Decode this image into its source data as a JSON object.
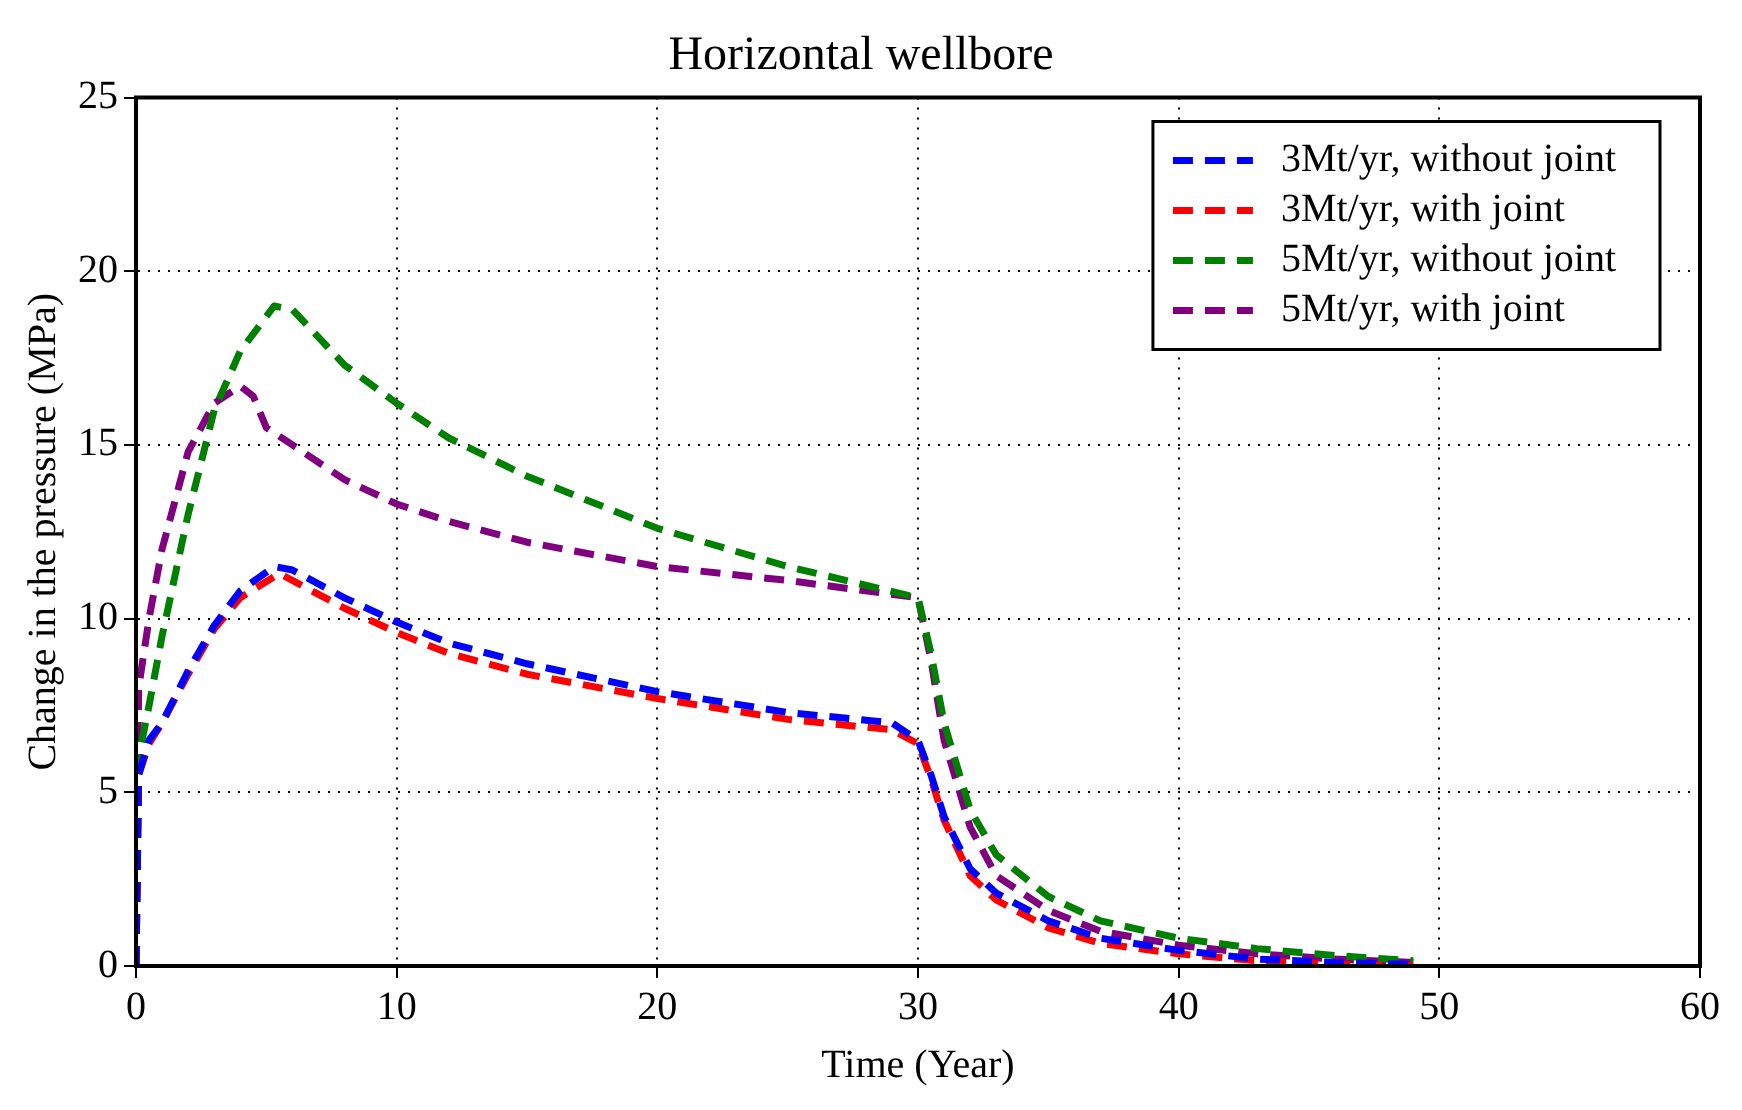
{
  "chart_data": {
    "type": "line",
    "title": "Horizontal wellbore",
    "xlabel": "Time (Year)",
    "ylabel": "Change in the pressure (MPa)",
    "xlim": [
      0,
      60
    ],
    "xticks": [
      0,
      10,
      20,
      30,
      40,
      50,
      60
    ],
    "ylim": [
      0,
      25
    ],
    "yticks": [
      0,
      5,
      10,
      15,
      20,
      25
    ],
    "grid": true,
    "legend": "top right",
    "line_style": "dashed",
    "marker": "none",
    "series": [
      {
        "name": "3Mt/yr, without joint",
        "color": "#0000ff",
        "x": [
          0,
          0.1,
          0.5,
          1,
          2,
          3,
          4,
          5.3,
          6,
          8,
          10,
          12,
          15,
          20,
          25,
          29,
          30,
          30.5,
          31,
          32,
          33,
          35,
          37,
          40,
          43,
          46,
          49
        ],
        "values": [
          0,
          5.5,
          6.5,
          7,
          8.5,
          9.8,
          10.8,
          11.5,
          11.4,
          10.6,
          9.9,
          9.3,
          8.7,
          7.9,
          7.3,
          7.0,
          6.5,
          5.5,
          4.3,
          2.8,
          2.1,
          1.3,
          0.8,
          0.45,
          0.2,
          0.1,
          0.05
        ]
      },
      {
        "name": "3Mt/yr, with joint",
        "color": "#ff0000",
        "x": [
          0,
          0.1,
          0.5,
          1,
          2,
          3,
          4,
          5.5,
          8,
          10,
          12,
          15,
          20,
          25,
          29,
          30,
          30.5,
          31,
          32,
          33,
          35,
          37,
          40,
          43,
          46,
          49
        ],
        "values": [
          0,
          5.5,
          6.4,
          7,
          8.4,
          9.7,
          10.6,
          11.3,
          10.3,
          9.6,
          9.0,
          8.4,
          7.7,
          7.1,
          6.8,
          6.4,
          5.4,
          4.2,
          2.6,
          1.9,
          1.1,
          0.65,
          0.35,
          0.15,
          0.05,
          0
        ]
      },
      {
        "name": "5Mt/yr, without joint",
        "color": "#008000",
        "x": [
          0,
          0.1,
          0.5,
          1,
          2,
          3,
          4,
          5.3,
          6,
          8,
          10,
          12,
          15,
          20,
          25,
          30,
          30.5,
          31,
          32,
          33,
          35,
          37,
          40,
          43,
          46,
          49
        ],
        "values": [
          0,
          6,
          7.5,
          9.5,
          13,
          16,
          17.7,
          19,
          18.9,
          17.3,
          16.2,
          15.2,
          14.1,
          12.6,
          11.5,
          10.6,
          9.0,
          7.0,
          4.5,
          3.2,
          2.0,
          1.3,
          0.8,
          0.5,
          0.3,
          0.15
        ]
      },
      {
        "name": "5Mt/yr, with joint",
        "color": "#800080",
        "x": [
          0,
          0.1,
          0.5,
          1,
          2,
          3,
          4,
          4.5,
          5,
          6,
          8,
          10,
          12,
          15,
          20,
          25,
          30,
          30.5,
          31,
          32,
          33,
          35,
          37,
          40,
          43,
          46,
          49
        ],
        "values": [
          0,
          8,
          10,
          12,
          14.8,
          16.2,
          16.7,
          16.4,
          15.5,
          15.0,
          14.0,
          13.3,
          12.8,
          12.2,
          11.5,
          11.1,
          10.6,
          8.8,
          6.5,
          4.0,
          2.6,
          1.6,
          1.0,
          0.6,
          0.35,
          0.2,
          0.1
        ]
      }
    ]
  }
}
